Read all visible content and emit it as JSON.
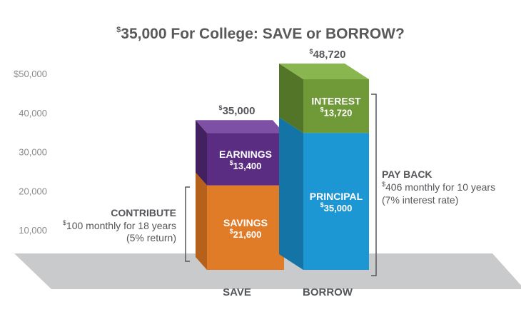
{
  "chart_data": {
    "type": "bar",
    "stacked": true,
    "title": {
      "symbol": "$",
      "text": "35,000 For College: SAVE or BORROW?"
    },
    "ylim": [
      0,
      50000
    ],
    "yticks": [
      {
        "value": 10000,
        "label": "10,000"
      },
      {
        "value": 20000,
        "label": "20,000"
      },
      {
        "value": 30000,
        "label": "30,000"
      },
      {
        "value": 40000,
        "label": "40,000"
      },
      {
        "value": 50000,
        "label": "$50,000"
      }
    ],
    "grid": false,
    "categories": [
      "SAVE",
      "BORROW"
    ],
    "bars": [
      {
        "category": "SAVE",
        "total": {
          "symbol": "$",
          "text": "35,000",
          "value": 35000
        },
        "segments": [
          {
            "label": "SAVINGS",
            "value": 21600,
            "value_label": "21,600",
            "color": "#e07b28",
            "top_color": "#f2a657",
            "side_color": "#b5611c"
          },
          {
            "label": "EARNINGS",
            "value": 13400,
            "value_label": "13,400",
            "color": "#5a2d82",
            "top_color": "#7d4fa5",
            "side_color": "#43205f"
          }
        ],
        "annotation": {
          "heading": "CONTRIBUTE",
          "lines": [
            {
              "symbol": "$",
              "text": "100 monthly for 18 years"
            },
            {
              "symbol": "",
              "text": "(5% return)"
            }
          ]
        }
      },
      {
        "category": "BORROW",
        "total": {
          "symbol": "$",
          "text": "48,720",
          "value": 48720
        },
        "segments": [
          {
            "label": "PRINCIPAL",
            "value": 35000,
            "value_label": "35,000",
            "color": "#1d97d4",
            "top_color": "#4ab3e6",
            "side_color": "#1474a6"
          },
          {
            "label": "INTEREST",
            "value": 13720,
            "value_label": "13,720",
            "color": "#6f9a37",
            "top_color": "#8ab650",
            "side_color": "#537527"
          }
        ],
        "annotation": {
          "heading": "PAY BACK",
          "lines": [
            {
              "symbol": "$",
              "text": "406 monthly for 10 years"
            },
            {
              "symbol": "",
              "text": "(7% interest rate)"
            }
          ]
        }
      }
    ]
  }
}
